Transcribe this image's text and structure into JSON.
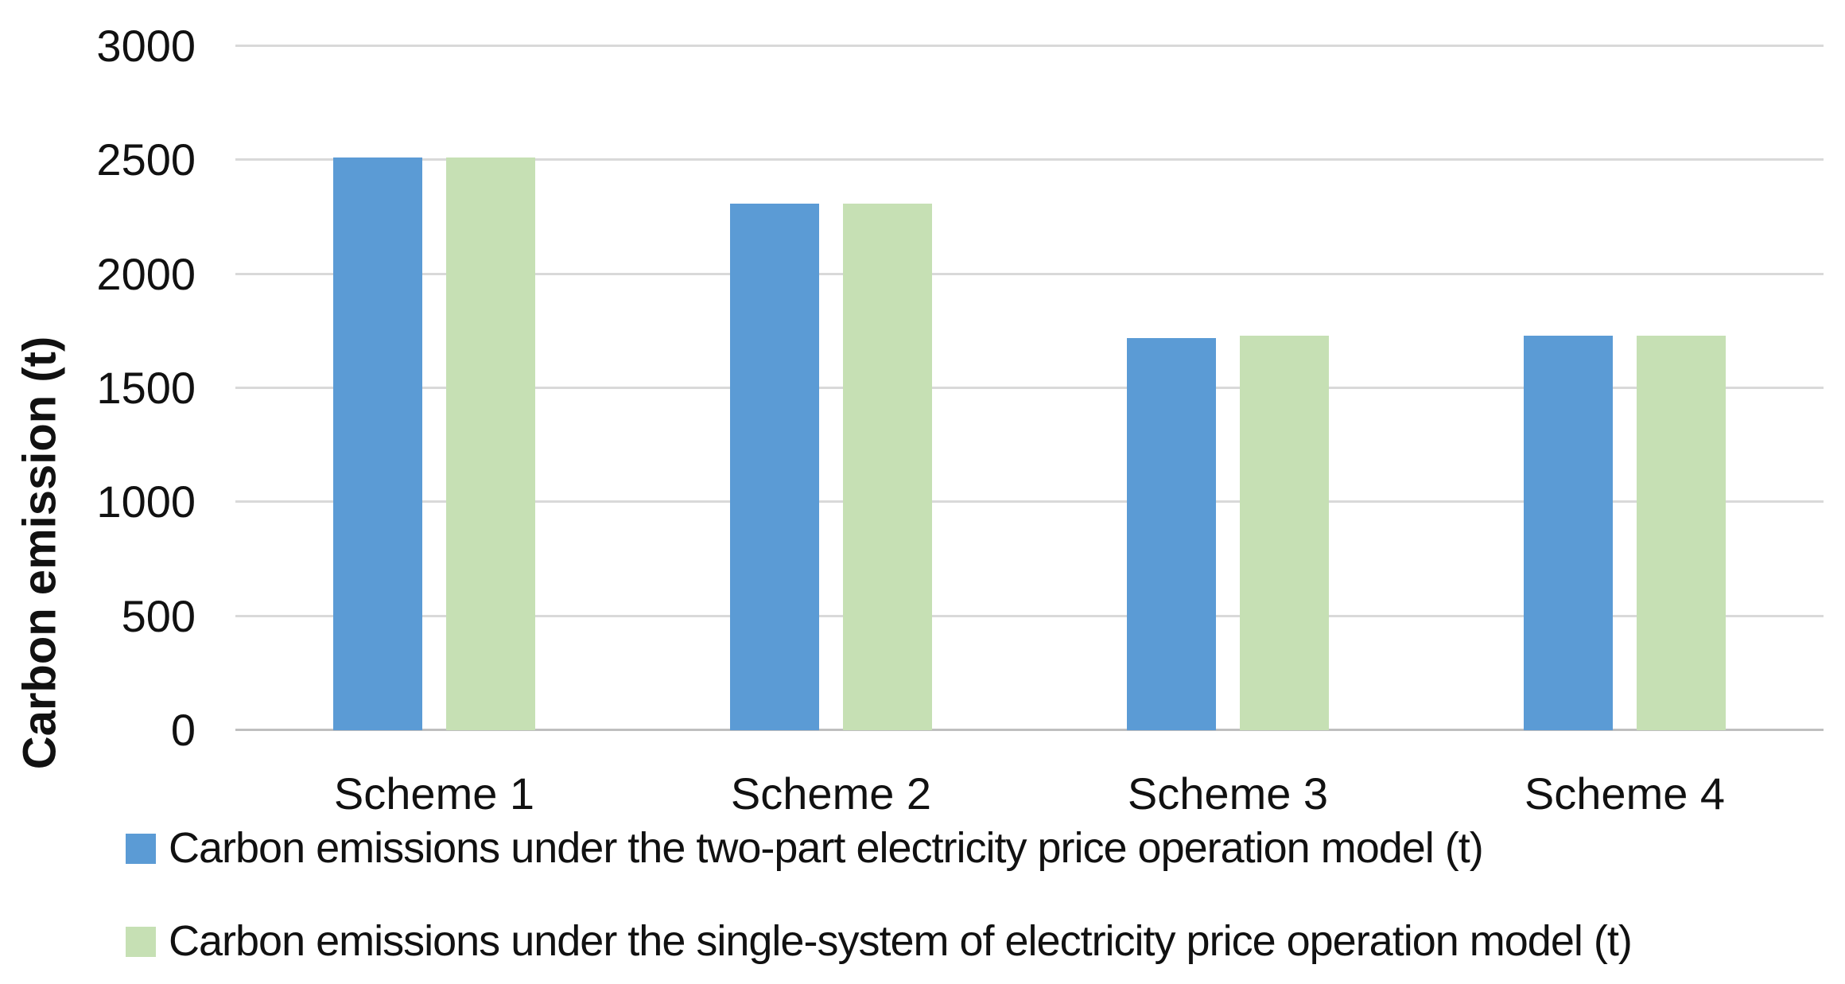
{
  "chart_data": {
    "type": "bar",
    "title": "",
    "categories": [
      "Scheme 1",
      "Scheme 2",
      "Scheme 3",
      "Scheme 4"
    ],
    "series": [
      {
        "name": "Carbon emissions under the two-part electricity price operation model (t)",
        "color": "#5b9bd5",
        "values": [
          2510,
          2310,
          1720,
          1730
        ]
      },
      {
        "name": "Carbon emissions under the single-system of electricity price operation model (t)",
        "color": "#c6e0b4",
        "values": [
          2510,
          2310,
          1730,
          1730
        ]
      }
    ],
    "xlabel": "",
    "ylabel": "Carbon emission (t)",
    "ylim": [
      0,
      3000
    ],
    "ytick_interval": 500,
    "yticks": [
      3000,
      2500,
      2000,
      1500,
      1000,
      500,
      0
    ],
    "grid": true,
    "gridline_color": "#d9d9d9",
    "axis_line_color": "#bfbfbf",
    "legend_position": "bottom-left"
  }
}
